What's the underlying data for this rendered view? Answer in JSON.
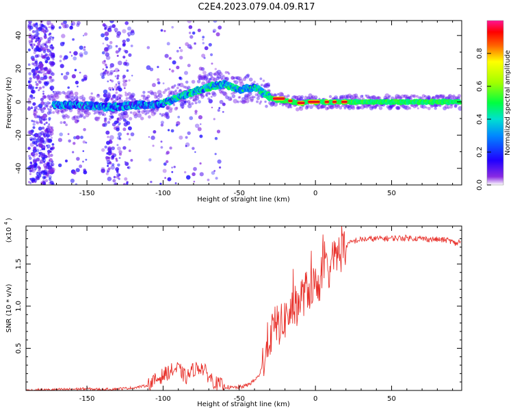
{
  "title": "C2E4.2023.079.04.09.R17",
  "colors": {
    "signal_line": "#e8312b",
    "axis": "#000000",
    "colorbar_stops": [
      "#ffffff",
      "#6a00ff",
      "#0000ff",
      "#00c8ff",
      "#00ff80",
      "#40ff00",
      "#ffff00",
      "#ff8000",
      "#ff0000",
      "#ff1493"
    ]
  },
  "chart_data": [
    {
      "type": "heatmap",
      "name": "spectrogram",
      "title": "C2E4.2023.079.04.09.R17",
      "xlabel": "Height of straight line (km)",
      "ylabel": "Frequency (Hz)",
      "xlim": [
        -190,
        96
      ],
      "ylim": [
        -50,
        49
      ],
      "x_ticks": [
        -150,
        -100,
        -50,
        0,
        50
      ],
      "x_tick_labels": [
        "-150",
        "-100",
        "-50",
        "0",
        "50"
      ],
      "y_ticks": [
        -40,
        -20,
        0,
        20,
        40
      ],
      "y_tick_labels": [
        "-40",
        "-20",
        "0",
        "20",
        "40"
      ],
      "frequency_track": {
        "x": [
          -170,
          -160,
          -150,
          -140,
          -130,
          -120,
          -110,
          -100,
          -90,
          -80,
          -70,
          -60,
          -55,
          -50,
          -45,
          -40,
          -35,
          -30,
          -28,
          -25,
          -20,
          -15,
          -10,
          -5,
          0,
          10,
          20,
          40,
          60,
          80,
          95
        ],
        "y": [
          -2,
          -2,
          -2,
          -3,
          -3,
          -2,
          -2,
          -1,
          3,
          6,
          9,
          11,
          9,
          7,
          8,
          9,
          6,
          3,
          2,
          1,
          1,
          0,
          -1,
          0,
          0,
          0,
          0,
          0,
          0,
          0,
          0
        ]
      },
      "colorbar": {
        "label": "Normalized spectral amplitude",
        "range": [
          0,
          1
        ],
        "ticks": [
          0.0,
          0.2,
          0.4,
          0.6,
          0.8
        ],
        "tick_labels": [
          "0.0",
          "0.2",
          "0.4",
          "0.6",
          "0.8"
        ]
      }
    },
    {
      "type": "line",
      "name": "snr",
      "xlabel": "Height of straight line (km)",
      "ylabel": "SNR (10 * v/v)",
      "y_scale_label": "(x10",
      "y_scale_exp": "4",
      "xlim": [
        -190,
        96
      ],
      "ylim": [
        0,
        19500
      ],
      "x_ticks": [
        -150,
        -100,
        -50,
        0,
        50
      ],
      "x_tick_labels": [
        "-150",
        "-100",
        "-50",
        "0",
        "50"
      ],
      "y_ticks": [
        5000,
        10000,
        15000
      ],
      "y_tick_labels": [
        "0.5",
        "1.0",
        "1.5"
      ],
      "series": [
        {
          "name": "SNR",
          "x": [
            -190,
            -170,
            -150,
            -140,
            -130,
            -120,
            -110,
            -100,
            -95,
            -90,
            -85,
            -80,
            -75,
            -70,
            -65,
            -60,
            -55,
            -50,
            -45,
            -40,
            -37,
            -35,
            -33,
            -30,
            -28,
            -25,
            -22,
            -20,
            -18,
            -15,
            -12,
            -10,
            -8,
            -5,
            -2,
            0,
            3,
            5,
            8,
            10,
            12,
            15,
            18,
            20,
            25,
            30,
            40,
            50,
            60,
            70,
            80,
            88,
            90,
            92,
            95
          ],
          "y": [
            0,
            100,
            200,
            100,
            200,
            300,
            600,
            1800,
            2300,
            2600,
            1500,
            2500,
            2800,
            1700,
            800,
            500,
            300,
            400,
            600,
            1200,
            1800,
            2800,
            4500,
            6500,
            7000,
            8000,
            7700,
            8500,
            9000,
            9500,
            10200,
            10800,
            11300,
            11900,
            12300,
            12600,
            13100,
            13800,
            14300,
            14900,
            15500,
            16200,
            16700,
            17200,
            17700,
            17900,
            18000,
            18050,
            18100,
            18000,
            17900,
            17800,
            17600,
            17400,
            17700
          ]
        }
      ]
    }
  ]
}
